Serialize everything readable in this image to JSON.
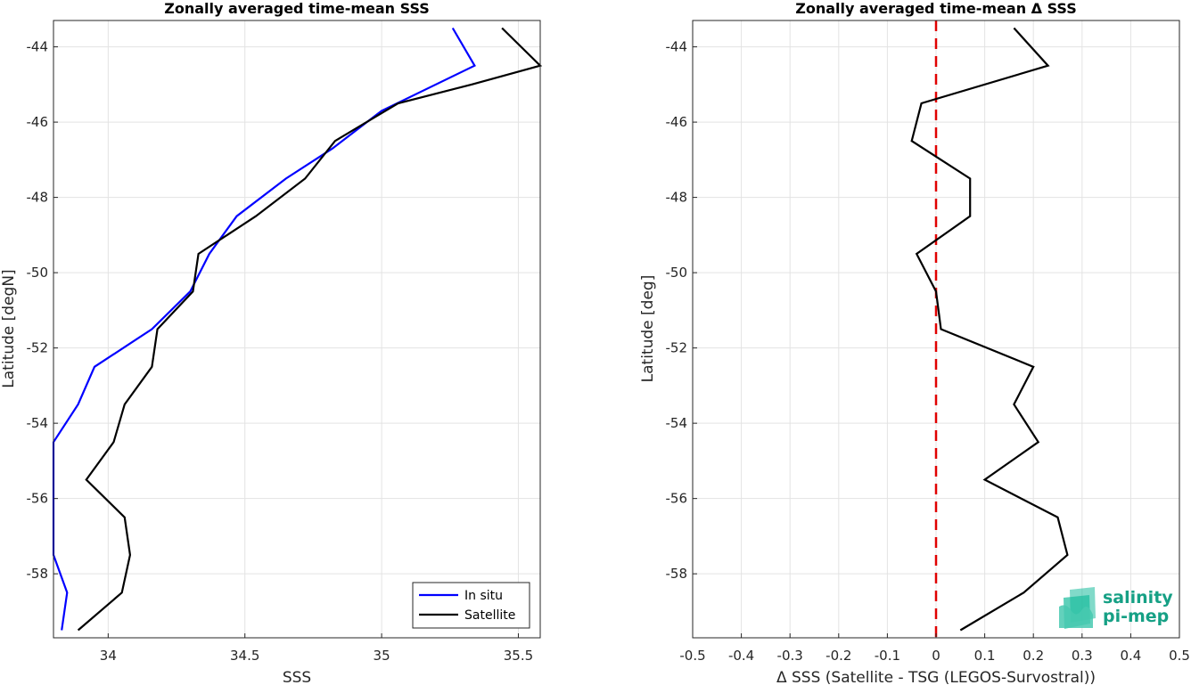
{
  "chart_data": [
    {
      "type": "line",
      "title": "Zonally averaged time-mean SSS",
      "xlabel": "SSS",
      "ylabel": "Latitude [degN]",
      "xlim": [
        33.8,
        35.58
      ],
      "ylim": [
        -59.7,
        -43.3
      ],
      "xticks": [
        "34",
        "34.5",
        "35",
        "35.5"
      ],
      "xtick_values": [
        34,
        34.5,
        35,
        35.5
      ],
      "yticks": [
        "-44",
        "-46",
        "-48",
        "-50",
        "-52",
        "-54",
        "-56",
        "-58"
      ],
      "ytick_values": [
        -44,
        -46,
        -48,
        -50,
        -52,
        -54,
        -56,
        -58
      ],
      "grid": true,
      "legend_position": "bottom-right",
      "series": [
        {
          "name": "In situ",
          "color": "#0000ff",
          "points": [
            [
              35.26,
              -43.5
            ],
            [
              35.34,
              -44.5
            ],
            [
              35.0,
              -45.7
            ],
            [
              34.82,
              -46.7
            ],
            [
              34.65,
              -47.5
            ],
            [
              34.47,
              -48.5
            ],
            [
              34.37,
              -49.5
            ],
            [
              34.3,
              -50.5
            ],
            [
              34.16,
              -51.5
            ],
            [
              33.95,
              -52.5
            ],
            [
              33.89,
              -53.5
            ],
            [
              33.8,
              -54.5
            ],
            [
              33.8,
              -55.5
            ],
            [
              33.8,
              -56.5
            ],
            [
              33.8,
              -57.5
            ],
            [
              33.85,
              -58.5
            ],
            [
              33.83,
              -59.5
            ]
          ]
        },
        {
          "name": "Satellite",
          "color": "#000000",
          "points": [
            [
              35.44,
              -43.5
            ],
            [
              35.58,
              -44.5
            ],
            [
              35.33,
              -45.0
            ],
            [
              35.06,
              -45.5
            ],
            [
              34.83,
              -46.5
            ],
            [
              34.72,
              -47.5
            ],
            [
              34.54,
              -48.5
            ],
            [
              34.33,
              -49.5
            ],
            [
              34.31,
              -50.5
            ],
            [
              34.18,
              -51.5
            ],
            [
              34.16,
              -52.5
            ],
            [
              34.06,
              -53.5
            ],
            [
              34.02,
              -54.5
            ],
            [
              33.92,
              -55.5
            ],
            [
              34.06,
              -56.5
            ],
            [
              34.08,
              -57.5
            ],
            [
              34.05,
              -58.5
            ],
            [
              33.89,
              -59.5
            ]
          ]
        }
      ]
    },
    {
      "type": "line",
      "title": "Zonally averaged time-mean Δ SSS",
      "xlabel": "Δ SSS (Satellite - TSG (LEGOS-Survostral))",
      "ylabel": "Latitude [deg]",
      "xlim": [
        -0.5,
        0.5
      ],
      "ylim": [
        -59.7,
        -43.3
      ],
      "xticks": [
        "-0.5",
        "-0.4",
        "-0.3",
        "-0.2",
        "-0.1",
        "0",
        "0.1",
        "0.2",
        "0.3",
        "0.4",
        "0.5"
      ],
      "xtick_values": [
        -0.5,
        -0.4,
        -0.3,
        -0.2,
        -0.1,
        0,
        0.1,
        0.2,
        0.3,
        0.4,
        0.5
      ],
      "yticks": [
        "-44",
        "-46",
        "-48",
        "-50",
        "-52",
        "-54",
        "-56",
        "-58"
      ],
      "ytick_values": [
        -44,
        -46,
        -48,
        -50,
        -52,
        -54,
        -56,
        -58
      ],
      "grid": true,
      "reference_line": {
        "x": 0,
        "color": "#e00000",
        "style": "dashed"
      },
      "series": [
        {
          "color": "#000000",
          "points": [
            [
              0.16,
              -43.5
            ],
            [
              0.23,
              -44.5
            ],
            [
              -0.03,
              -45.5
            ],
            [
              -0.05,
              -46.5
            ],
            [
              0.07,
              -47.5
            ],
            [
              0.07,
              -48.5
            ],
            [
              -0.04,
              -49.5
            ],
            [
              0.0,
              -50.5
            ],
            [
              0.01,
              -51.5
            ],
            [
              0.2,
              -52.5
            ],
            [
              0.16,
              -53.5
            ],
            [
              0.21,
              -54.5
            ],
            [
              0.1,
              -55.5
            ],
            [
              0.25,
              -56.5
            ],
            [
              0.27,
              -57.5
            ],
            [
              0.18,
              -58.5
            ],
            [
              0.05,
              -59.5
            ]
          ]
        }
      ]
    }
  ],
  "logo": {
    "line1": "salinity",
    "line2": "pi-mep",
    "color_text": "#16a085",
    "color_mark": "#1abc9c"
  }
}
